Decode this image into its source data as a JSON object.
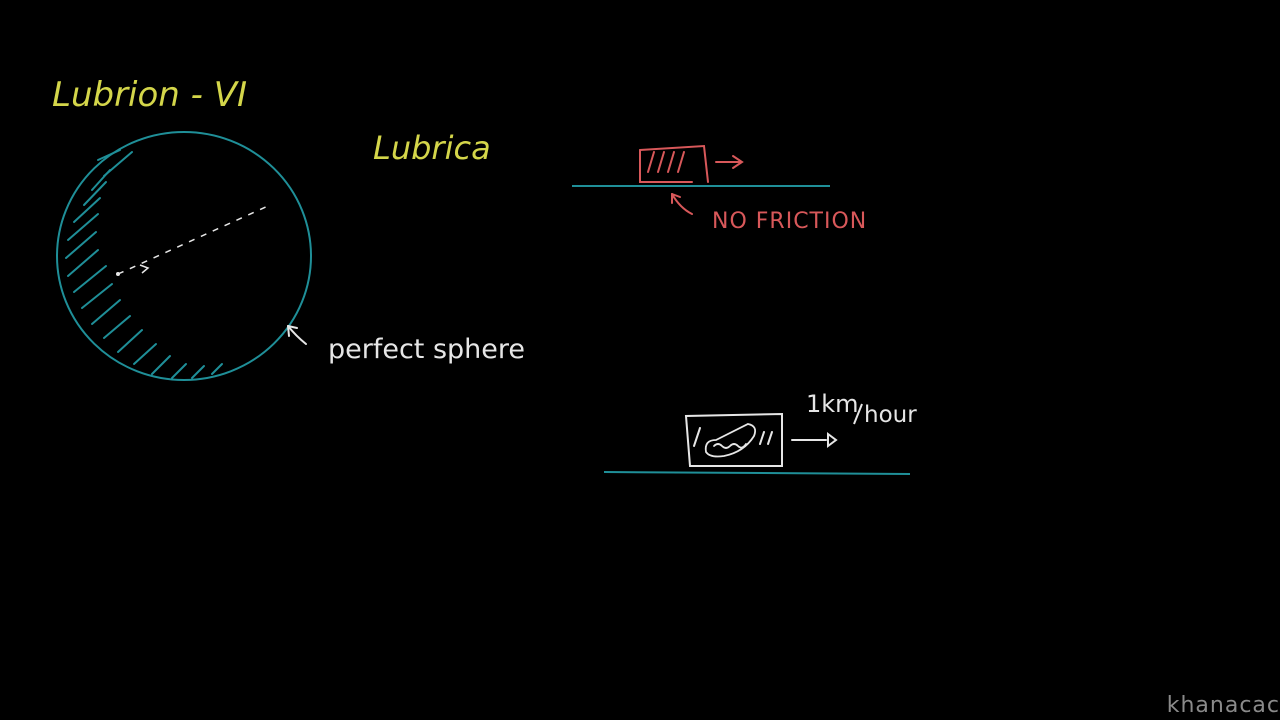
{
  "title": "Lubrion - VI",
  "place_label": "Lubrica",
  "sphere_label": "perfect sphere",
  "friction_label": "NO FRICTION",
  "speed_label": {
    "numerator": "1km",
    "denominator": "hour"
  },
  "watermark": "khanacac",
  "colors": {
    "background": "#000000",
    "title": "#d4d64a",
    "sphere": "#1f8f98",
    "annotation": "#e6e6e6",
    "friction": "#d8585a",
    "ground": "#1f8f98"
  }
}
